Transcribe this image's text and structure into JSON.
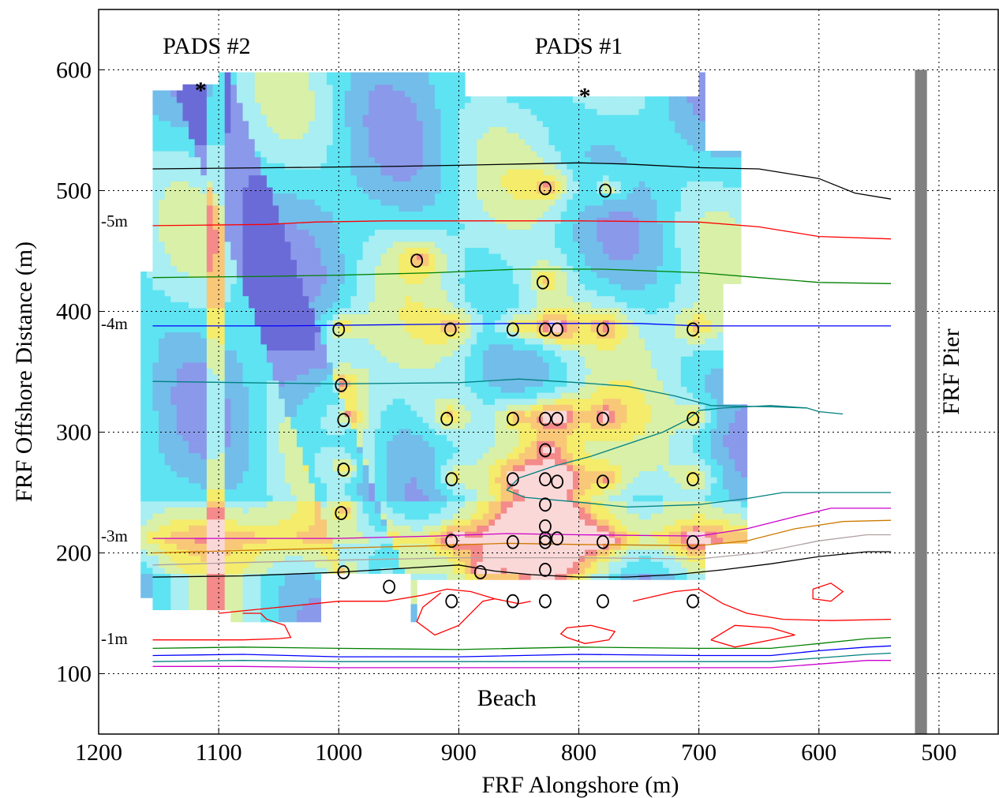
{
  "chart_data": {
    "type": "heatmap",
    "xlabel": "FRF Alongshore (m)",
    "ylabel": "FRF Offshore Distance (m)",
    "xlim": [
      1200,
      450
    ],
    "x_reversed": true,
    "ylim": [
      50,
      650
    ],
    "xticks": [
      1200,
      1100,
      1000,
      900,
      800,
      700,
      600,
      500
    ],
    "yticks": [
      100,
      200,
      300,
      400,
      500,
      600
    ],
    "grid": true,
    "annotations": [
      {
        "key": "pads2",
        "text": "PADS #2",
        "x": 1110,
        "y": 620
      },
      {
        "key": "pads1",
        "text": "PADS #1",
        "x": 800,
        "y": 620
      },
      {
        "key": "beach",
        "text": "Beach",
        "x": 860,
        "y": 80
      },
      {
        "key": "pier",
        "text": "FRF Pier",
        "x": 490,
        "y": 350
      }
    ],
    "pads_markers": [
      {
        "text": "*",
        "x": 1115,
        "y": 590
      },
      {
        "text": "*",
        "x": 795,
        "y": 585
      }
    ],
    "pier": {
      "x_from": 520,
      "x_to": 510,
      "y_from": 50,
      "y_to": 600,
      "color": "#808080"
    },
    "depth_labels": [
      {
        "text": "-5m",
        "y": 475
      },
      {
        "text": "-4m",
        "y": 390
      },
      {
        "text": "-3m",
        "y": 214
      },
      {
        "text": "-1m",
        "y": 129
      }
    ],
    "contours": [
      {
        "color": "#000000",
        "points": [
          [
            1155,
            518
          ],
          [
            1050,
            519
          ],
          [
            960,
            520
          ],
          [
            900,
            521
          ],
          [
            850,
            522
          ],
          [
            800,
            523
          ],
          [
            760,
            522
          ],
          [
            700,
            519
          ],
          [
            650,
            518
          ],
          [
            600,
            510
          ],
          [
            570,
            498
          ],
          [
            540,
            493
          ]
        ]
      },
      {
        "color": "#ff0000",
        "points": [
          [
            1155,
            471
          ],
          [
            1060,
            472
          ],
          [
            1020,
            474
          ],
          [
            960,
            475
          ],
          [
            900,
            475
          ],
          [
            800,
            475
          ],
          [
            700,
            474
          ],
          [
            650,
            470
          ],
          [
            600,
            462
          ],
          [
            540,
            460
          ]
        ]
      },
      {
        "color": "#008000",
        "points": [
          [
            1155,
            428
          ],
          [
            1060,
            429
          ],
          [
            1000,
            430
          ],
          [
            920,
            432
          ],
          [
            850,
            435
          ],
          [
            780,
            435
          ],
          [
            700,
            432
          ],
          [
            650,
            428
          ],
          [
            600,
            424
          ],
          [
            540,
            423
          ]
        ]
      },
      {
        "color": "#0000ff",
        "points": [
          [
            1155,
            388
          ],
          [
            1050,
            388
          ],
          [
            950,
            389
          ],
          [
            850,
            390
          ],
          [
            750,
            390
          ],
          [
            700,
            388
          ],
          [
            650,
            388
          ],
          [
            540,
            388
          ]
        ]
      },
      {
        "color": "#008080",
        "points": [
          [
            1155,
            342
          ],
          [
            1080,
            341
          ],
          [
            1000,
            340
          ],
          [
            900,
            341
          ],
          [
            850,
            344
          ],
          [
            800,
            341
          ],
          [
            760,
            338
          ],
          [
            720,
            330
          ],
          [
            690,
            322
          ],
          [
            640,
            321
          ],
          [
            610,
            320
          ],
          [
            600,
            317
          ],
          [
            580,
            315
          ]
        ]
      },
      {
        "color": "#008080",
        "points": [
          [
            610,
            320
          ],
          [
            640,
            322
          ],
          [
            680,
            320
          ],
          [
            700,
            318
          ],
          [
            710,
            310
          ],
          [
            730,
            300
          ],
          [
            760,
            290
          ],
          [
            790,
            280
          ],
          [
            820,
            272
          ],
          [
            850,
            262
          ],
          [
            860,
            252
          ],
          [
            845,
            246
          ],
          [
            800,
            242
          ],
          [
            760,
            238
          ],
          [
            700,
            240
          ],
          [
            660,
            245
          ],
          [
            630,
            250
          ],
          [
            540,
            250
          ]
        ]
      },
      {
        "color": "#cc00cc",
        "points": [
          [
            1155,
            212
          ],
          [
            1080,
            212
          ],
          [
            1000,
            212
          ],
          [
            920,
            214
          ],
          [
            860,
            216
          ],
          [
            800,
            215
          ],
          [
            700,
            214
          ],
          [
            660,
            220
          ],
          [
            620,
            230
          ],
          [
            590,
            237
          ],
          [
            540,
            237
          ]
        ]
      },
      {
        "color": "#cc7a00",
        "points": [
          [
            1155,
            200
          ],
          [
            1080,
            202
          ],
          [
            1000,
            204
          ],
          [
            920,
            206
          ],
          [
            860,
            208
          ],
          [
            800,
            207
          ],
          [
            700,
            206
          ],
          [
            660,
            210
          ],
          [
            620,
            220
          ],
          [
            580,
            226
          ],
          [
            540,
            227
          ]
        ]
      },
      {
        "color": "#b0a0a0",
        "points": [
          [
            1155,
            190
          ],
          [
            1080,
            192
          ],
          [
            1000,
            194
          ],
          [
            900,
            196
          ],
          [
            800,
            196
          ],
          [
            700,
            195
          ],
          [
            650,
            200
          ],
          [
            600,
            210
          ],
          [
            560,
            215
          ],
          [
            540,
            215
          ]
        ]
      },
      {
        "color": "#000000",
        "points": [
          [
            1155,
            180
          ],
          [
            1080,
            181
          ],
          [
            1000,
            184
          ],
          [
            950,
            187
          ],
          [
            900,
            190
          ],
          [
            870,
            185
          ],
          [
            840,
            182
          ],
          [
            800,
            180
          ],
          [
            760,
            180
          ],
          [
            720,
            182
          ],
          [
            680,
            186
          ],
          [
            640,
            191
          ],
          [
            600,
            197
          ],
          [
            560,
            201
          ],
          [
            540,
            201
          ]
        ]
      },
      {
        "color": "#ff0000",
        "points": [
          [
            1100,
            150
          ],
          [
            1080,
            152
          ],
          [
            1050,
            155
          ],
          [
            1000,
            160
          ],
          [
            960,
            160
          ],
          [
            930,
            165
          ],
          [
            910,
            170
          ],
          [
            890,
            168
          ],
          [
            870,
            162
          ],
          [
            850,
            158
          ],
          [
            840,
            160
          ]
        ]
      },
      {
        "color": "#ff0000",
        "points": [
          [
            915,
            167
          ],
          [
            930,
            155
          ],
          [
            935,
            143
          ],
          [
            920,
            132
          ],
          [
            900,
            140
          ],
          [
            880,
            160
          ],
          [
            870,
            162
          ]
        ]
      },
      {
        "color": "#ff0000",
        "points": [
          [
            755,
            160
          ],
          [
            720,
            168
          ],
          [
            700,
            170
          ],
          [
            680,
            158
          ],
          [
            660,
            150
          ],
          [
            630,
            145
          ],
          [
            590,
            144
          ],
          [
            540,
            145
          ]
        ]
      },
      {
        "color": "#ff0000",
        "points": [
          [
            810,
            130
          ],
          [
            795,
            125
          ],
          [
            775,
            128
          ],
          [
            770,
            135
          ],
          [
            790,
            140
          ],
          [
            810,
            138
          ],
          [
            815,
            133
          ],
          [
            810,
            130
          ]
        ]
      },
      {
        "color": "#ff0000",
        "points": [
          [
            690,
            128
          ],
          [
            670,
            140
          ],
          [
            640,
            138
          ],
          [
            620,
            132
          ],
          [
            640,
            128
          ],
          [
            670,
            122
          ],
          [
            690,
            128
          ]
        ]
      },
      {
        "color": "#ff0000",
        "points": [
          [
            605,
            170
          ],
          [
            590,
            175
          ],
          [
            580,
            168
          ],
          [
            590,
            160
          ],
          [
            605,
            162
          ],
          [
            605,
            170
          ]
        ]
      },
      {
        "color": "#ff0000",
        "points": [
          [
            1155,
            128
          ],
          [
            1080,
            128
          ],
          [
            1050,
            129
          ],
          [
            1040,
            130
          ],
          [
            1045,
            140
          ],
          [
            1060,
            145
          ],
          [
            1065,
            150
          ],
          [
            1080,
            150
          ]
        ]
      },
      {
        "color": "#008000",
        "points": [
          [
            1155,
            121
          ],
          [
            1080,
            122
          ],
          [
            1000,
            121
          ],
          [
            900,
            120
          ],
          [
            800,
            122
          ],
          [
            700,
            121
          ],
          [
            640,
            121
          ],
          [
            600,
            125
          ],
          [
            560,
            129
          ],
          [
            540,
            130
          ]
        ]
      },
      {
        "color": "#0000ff",
        "points": [
          [
            1155,
            115
          ],
          [
            1080,
            116
          ],
          [
            1000,
            114
          ],
          [
            900,
            114
          ],
          [
            800,
            116
          ],
          [
            700,
            115
          ],
          [
            640,
            115
          ],
          [
            600,
            119
          ],
          [
            560,
            122
          ],
          [
            540,
            123
          ]
        ]
      },
      {
        "color": "#008080",
        "points": [
          [
            1155,
            110
          ],
          [
            1080,
            111
          ],
          [
            1000,
            110
          ],
          [
            900,
            110
          ],
          [
            800,
            110
          ],
          [
            700,
            110
          ],
          [
            640,
            110
          ],
          [
            600,
            113
          ],
          [
            560,
            116
          ],
          [
            540,
            117
          ]
        ]
      },
      {
        "color": "#cc00cc",
        "points": [
          [
            1155,
            106
          ],
          [
            1080,
            106
          ],
          [
            1000,
            105
          ],
          [
            900,
            105
          ],
          [
            800,
            105
          ],
          [
            700,
            105
          ],
          [
            640,
            105
          ],
          [
            600,
            108
          ],
          [
            560,
            111
          ],
          [
            540,
            111
          ]
        ]
      }
    ],
    "instruments": [
      [
        828,
        502
      ],
      [
        778,
        500
      ],
      [
        935,
        442
      ],
      [
        830,
        424
      ],
      [
        1000,
        385
      ],
      [
        907,
        385
      ],
      [
        855,
        385
      ],
      [
        828,
        385
      ],
      [
        818,
        385
      ],
      [
        780,
        385
      ],
      [
        705,
        385
      ],
      [
        998,
        339
      ],
      [
        996,
        310
      ],
      [
        910,
        311
      ],
      [
        855,
        311
      ],
      [
        828,
        311
      ],
      [
        818,
        311
      ],
      [
        780,
        311
      ],
      [
        705,
        311
      ],
      [
        828,
        285
      ],
      [
        996,
        269
      ],
      [
        906,
        261
      ],
      [
        855,
        261
      ],
      [
        828,
        261
      ],
      [
        818,
        259
      ],
      [
        780,
        259
      ],
      [
        705,
        261
      ],
      [
        828,
        240
      ],
      [
        998,
        233
      ],
      [
        828,
        222
      ],
      [
        828,
        212
      ],
      [
        818,
        212
      ],
      [
        906,
        210
      ],
      [
        855,
        209
      ],
      [
        828,
        209
      ],
      [
        780,
        209
      ],
      [
        705,
        209
      ],
      [
        996,
        184
      ],
      [
        882,
        184
      ],
      [
        828,
        186
      ],
      [
        958,
        172
      ],
      [
        906,
        160
      ],
      [
        855,
        160
      ],
      [
        828,
        160
      ],
      [
        780,
        160
      ],
      [
        705,
        160
      ]
    ],
    "heatmap_palette": [
      "#6b6bd8",
      "#8a99ea",
      "#72bdea",
      "#5ee3f2",
      "#a8eef2",
      "#d8f0a8",
      "#f4ec6a",
      "#f8c878",
      "#f48a8a",
      "#fbd8d8"
    ],
    "heatmap_extent": {
      "x": [
        1165,
        662
      ],
      "y": [
        143,
        598
      ]
    }
  }
}
